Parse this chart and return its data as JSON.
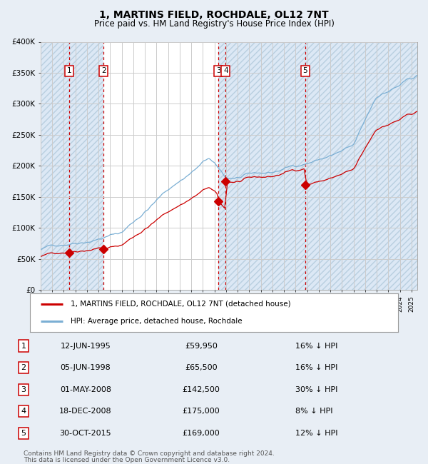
{
  "title": "1, MARTINS FIELD, ROCHDALE, OL12 7NT",
  "subtitle": "Price paid vs. HM Land Registry's House Price Index (HPI)",
  "legend_property": "1, MARTINS FIELD, ROCHDALE, OL12 7NT (detached house)",
  "legend_hpi": "HPI: Average price, detached house, Rochdale",
  "footer1": "Contains HM Land Registry data © Crown copyright and database right 2024.",
  "footer2": "This data is licensed under the Open Government Licence v3.0.",
  "sales": [
    {
      "num": 1,
      "date": "12-JUN-1995",
      "price": 59950,
      "pct": "16%",
      "dir": "↓",
      "year": 1995.45
    },
    {
      "num": 2,
      "date": "05-JUN-1998",
      "price": 65500,
      "pct": "16%",
      "dir": "↓",
      "year": 1998.43
    },
    {
      "num": 3,
      "date": "01-MAY-2008",
      "price": 142500,
      "pct": "30%",
      "dir": "↓",
      "year": 2008.33
    },
    {
      "num": 4,
      "date": "18-DEC-2008",
      "price": 175000,
      "pct": "8%",
      "dir": "↓",
      "year": 2008.96
    },
    {
      "num": 5,
      "date": "30-OCT-2015",
      "price": 169000,
      "pct": "12%",
      "dir": "↓",
      "year": 2015.83
    }
  ],
  "ylim": [
    0,
    400000
  ],
  "xlim_start": 1993.0,
  "xlim_end": 2025.5,
  "property_line_color": "#cc0000",
  "hpi_line_color": "#7bafd4",
  "dashed_line_color": "#cc0000",
  "background_color": "#e8eef5",
  "plot_bg_color": "#ffffff",
  "grid_color": "#cccccc",
  "shade_color": "#dce8f5",
  "hatch_color": "#b8cfe0",
  "yticks": [
    0,
    50000,
    100000,
    150000,
    200000,
    250000,
    300000,
    350000,
    400000
  ],
  "ytick_labels": [
    "£0",
    "£50K",
    "£100K",
    "£150K",
    "£200K",
    "£250K",
    "£300K",
    "£350K",
    "£400K"
  ]
}
